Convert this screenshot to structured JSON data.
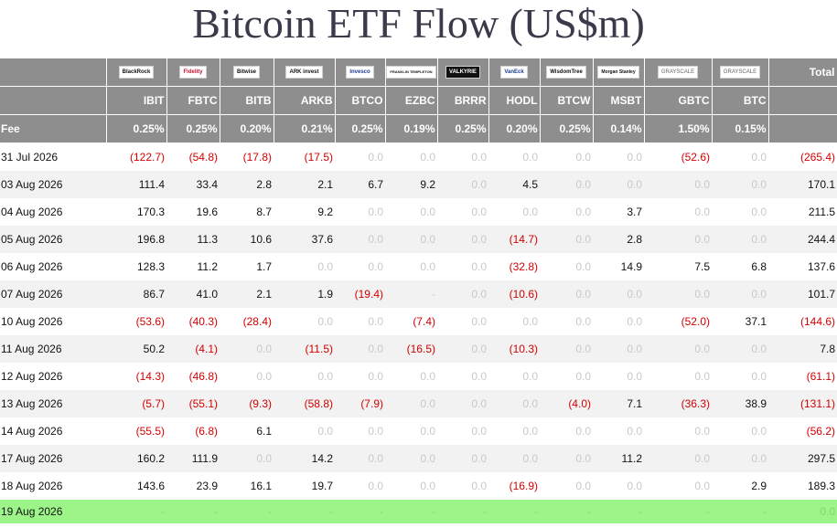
{
  "title": "Bitcoin ETF Flow (US$m)",
  "header": {
    "total_label": "Total",
    "fee_label": "Fee",
    "issuers": [
      "BlackRock",
      "Fidelity",
      "Bitwise",
      "ARK invest",
      "Invesco",
      "FRANKLIN TEMPLETON",
      "VALKYRIE",
      "VanEck",
      "WisdomTree",
      "Morgan Stanley",
      "GRAYSCALE",
      "GRAYSCALE"
    ],
    "tickers": [
      "IBIT",
      "FBTC",
      "BITB",
      "ARKB",
      "BTCO",
      "EZBC",
      "BRRR",
      "HODL",
      "BTCW",
      "MSBT",
      "GBTC",
      "BTC"
    ],
    "fees": [
      "0.25%",
      "0.25%",
      "0.20%",
      "0.21%",
      "0.25%",
      "0.19%",
      "0.25%",
      "0.20%",
      "0.25%",
      "0.14%",
      "1.50%",
      "0.15%"
    ]
  },
  "colors": {
    "header_bg": "#8e8e8e",
    "negative": "#d40000",
    "zero": "#c9c9c9",
    "today_bg": "#9df58a",
    "alt_row_bg": "#f2f2f2"
  },
  "rows": [
    {
      "date": "31 Jul 2026",
      "values": [
        "(122.7)",
        "(54.8)",
        "(17.8)",
        "(17.5)",
        "0.0",
        "0.0",
        "0.0",
        "0.0",
        "0.0",
        "0.0",
        "(52.6)",
        "0.0"
      ],
      "total": "(265.4)"
    },
    {
      "date": "03 Aug 2026",
      "values": [
        "111.4",
        "33.4",
        "2.8",
        "2.1",
        "6.7",
        "9.2",
        "0.0",
        "4.5",
        "0.0",
        "0.0",
        "0.0",
        "0.0"
      ],
      "total": "170.1"
    },
    {
      "date": "04 Aug 2026",
      "values": [
        "170.3",
        "19.6",
        "8.7",
        "9.2",
        "0.0",
        "0.0",
        "0.0",
        "0.0",
        "0.0",
        "3.7",
        "0.0",
        "0.0"
      ],
      "total": "211.5"
    },
    {
      "date": "05 Aug 2026",
      "values": [
        "196.8",
        "11.3",
        "10.6",
        "37.6",
        "0.0",
        "0.0",
        "0.0",
        "(14.7)",
        "0.0",
        "2.8",
        "0.0",
        "0.0"
      ],
      "total": "244.4"
    },
    {
      "date": "06 Aug 2026",
      "values": [
        "128.3",
        "11.2",
        "1.7",
        "0.0",
        "0.0",
        "0.0",
        "0.0",
        "(32.8)",
        "0.0",
        "14.9",
        "7.5",
        "6.8"
      ],
      "total": "137.6"
    },
    {
      "date": "07 Aug 2026",
      "values": [
        "86.7",
        "41.0",
        "2.1",
        "1.9",
        "(19.4)",
        "-",
        "0.0",
        "(10.6)",
        "0.0",
        "0.0",
        "0.0",
        "0.0"
      ],
      "total": "101.7"
    },
    {
      "date": "10 Aug 2026",
      "values": [
        "(53.6)",
        "(40.3)",
        "(28.4)",
        "0.0",
        "0.0",
        "(7.4)",
        "0.0",
        "0.0",
        "0.0",
        "0.0",
        "(52.0)",
        "37.1"
      ],
      "total": "(144.6)"
    },
    {
      "date": "11 Aug 2026",
      "values": [
        "50.2",
        "(4.1)",
        "0.0",
        "(11.5)",
        "0.0",
        "(16.5)",
        "0.0",
        "(10.3)",
        "0.0",
        "0.0",
        "0.0",
        "0.0"
      ],
      "total": "7.8"
    },
    {
      "date": "12 Aug 2026",
      "values": [
        "(14.3)",
        "(46.8)",
        "0.0",
        "0.0",
        "0.0",
        "0.0",
        "0.0",
        "0.0",
        "0.0",
        "0.0",
        "0.0",
        "0.0"
      ],
      "total": "(61.1)"
    },
    {
      "date": "13 Aug 2026",
      "values": [
        "(5.7)",
        "(55.1)",
        "(9.3)",
        "(58.8)",
        "(7.9)",
        "0.0",
        "0.0",
        "0.0",
        "(4.0)",
        "7.1",
        "(36.3)",
        "38.9"
      ],
      "total": "(131.1)"
    },
    {
      "date": "14 Aug 2026",
      "values": [
        "(55.5)",
        "(6.8)",
        "6.1",
        "0.0",
        "0.0",
        "0.0",
        "0.0",
        "0.0",
        "0.0",
        "0.0",
        "0.0",
        "0.0"
      ],
      "total": "(56.2)"
    },
    {
      "date": "17 Aug 2026",
      "values": [
        "160.2",
        "111.9",
        "0.0",
        "14.2",
        "0.0",
        "0.0",
        "0.0",
        "0.0",
        "0.0",
        "11.2",
        "0.0",
        "0.0"
      ],
      "total": "297.5"
    },
    {
      "date": "18 Aug 2026",
      "values": [
        "143.6",
        "23.9",
        "16.1",
        "19.7",
        "0.0",
        "0.0",
        "0.0",
        "(16.9)",
        "0.0",
        "0.0",
        "0.0",
        "2.9"
      ],
      "total": "189.3"
    },
    {
      "date": "19 Aug 2026",
      "values": [
        "-",
        "-",
        "-",
        "-",
        "-",
        "-",
        "-",
        "-",
        "-",
        "-",
        "-",
        "-"
      ],
      "total": "0.0"
    }
  ]
}
